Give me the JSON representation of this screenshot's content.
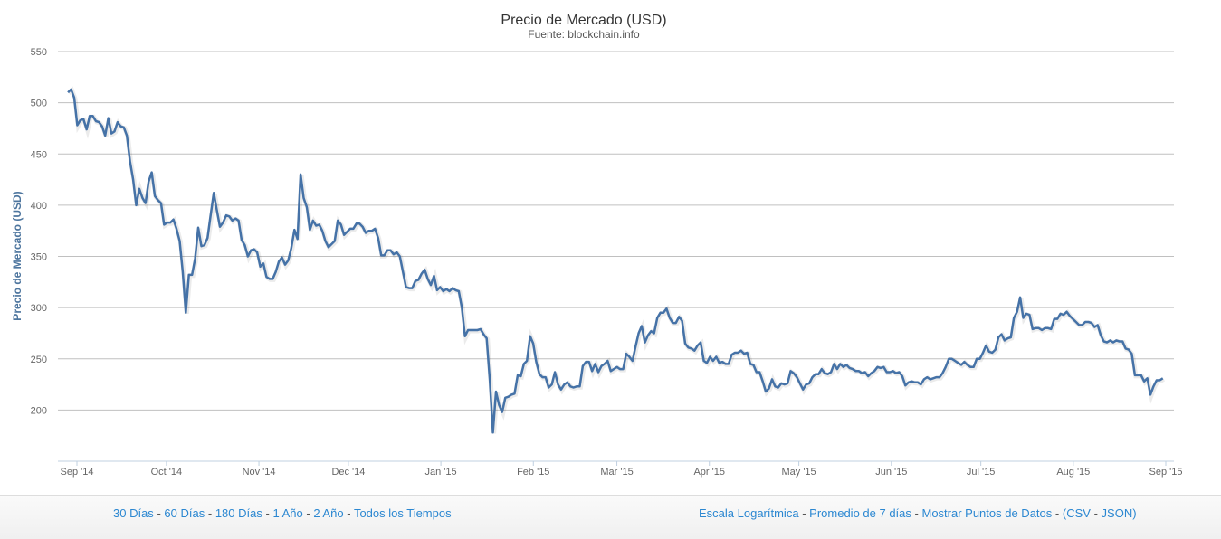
{
  "chart_data": {
    "type": "line",
    "title": "Precio de Mercado (USD)",
    "subtitle": "Fuente: blockchain.info",
    "ylabel": "Precio de Mercado (USD)",
    "xlabel": "",
    "ylim": [
      150,
      550
    ],
    "yticks": [
      200,
      250,
      300,
      350,
      400,
      450,
      500,
      550
    ],
    "xticks": [
      "Sep '14",
      "Oct '14",
      "Nov '14",
      "Dec '14",
      "Jan '15",
      "Feb '15",
      "Mar '15",
      "Apr '15",
      "May '15",
      "Jun '15",
      "Jul '15",
      "Aug '15",
      "Sep '15"
    ],
    "xtick_dates": [
      "2014-09-01",
      "2014-10-01",
      "2014-11-01",
      "2014-12-01",
      "2015-01-01",
      "2015-02-01",
      "2015-03-01",
      "2015-04-01",
      "2015-05-01",
      "2015-06-01",
      "2015-07-01",
      "2015-08-01",
      "2015-09-01"
    ],
    "grid": true,
    "legend": "none",
    "series": [
      {
        "name": "Precio de Mercado (USD)",
        "color": "#4572a7",
        "start_date": "2014-08-29",
        "end_date": "2015-08-31",
        "values": [
          510,
          513,
          505,
          478,
          483,
          484,
          474,
          487,
          487,
          482,
          481,
          477,
          468,
          485,
          470,
          472,
          481,
          477,
          476,
          468,
          443,
          425,
          400,
          416,
          407,
          402,
          423,
          432,
          409,
          405,
          402,
          381,
          383,
          383,
          386,
          377,
          365,
          335,
          295,
          332,
          332,
          348,
          378,
          360,
          361,
          368,
          390,
          412,
          395,
          379,
          383,
          390,
          389,
          385,
          387,
          385,
          366,
          361,
          350,
          356,
          357,
          354,
          340,
          343,
          330,
          328,
          328,
          335,
          345,
          349,
          342,
          346,
          358,
          376,
          367,
          430,
          407,
          398,
          376,
          385,
          380,
          381,
          375,
          365,
          359,
          362,
          365,
          385,
          381,
          371,
          374,
          377,
          377,
          382,
          382,
          379,
          373,
          375,
          375,
          377,
          368,
          351,
          351,
          356,
          356,
          352,
          354,
          350,
          335,
          320,
          319,
          319,
          326,
          327,
          333,
          337,
          328,
          322,
          331,
          317,
          320,
          316,
          318,
          316,
          319,
          317,
          316,
          300,
          272,
          278,
          278,
          278,
          278,
          279,
          274,
          270,
          230,
          178,
          218,
          205,
          198,
          212,
          213,
          215,
          216,
          234,
          233,
          245,
          248,
          272,
          265,
          247,
          235,
          232,
          232,
          222,
          225,
          237,
          225,
          220,
          225,
          227,
          223,
          222,
          223,
          223,
          243,
          247,
          247,
          238,
          245,
          237,
          243,
          245,
          248,
          238,
          240,
          242,
          240,
          240,
          255,
          252,
          248,
          262,
          275,
          282,
          266,
          273,
          277,
          275,
          290,
          295,
          295,
          299,
          290,
          285,
          285,
          291,
          287,
          265,
          261,
          260,
          258,
          263,
          266,
          248,
          246,
          252,
          248,
          252,
          246,
          247,
          245,
          245,
          254,
          256,
          256,
          258,
          255,
          256,
          245,
          244,
          237,
          237,
          228,
          218,
          221,
          230,
          223,
          222,
          226,
          225,
          226,
          238,
          236,
          232,
          226,
          220,
          225,
          226,
          232,
          235,
          235,
          240,
          236,
          235,
          237,
          245,
          240,
          245,
          242,
          244,
          241,
          240,
          238,
          238,
          236,
          237,
          233,
          236,
          238,
          242,
          241,
          242,
          237,
          237,
          238,
          236,
          237,
          233,
          224,
          227,
          228,
          227,
          227,
          225,
          230,
          232,
          230,
          231,
          232,
          232,
          236,
          242,
          250,
          250,
          248,
          246,
          244,
          247,
          244,
          242,
          242,
          250,
          250,
          256,
          263,
          257,
          256,
          259,
          271,
          274,
          268,
          270,
          271,
          290,
          296,
          310,
          290,
          294,
          293,
          279,
          280,
          280,
          278,
          280,
          280,
          279,
          289,
          289,
          294,
          293,
          296,
          292,
          289,
          286,
          283,
          283,
          286,
          286,
          285,
          281,
          283,
          273,
          267,
          266,
          268,
          266,
          268,
          267,
          267,
          260,
          259,
          255,
          234,
          234,
          234,
          228,
          231,
          215,
          223,
          229,
          229,
          231
        ]
      }
    ]
  },
  "footer": {
    "range_links": [
      "30 Días",
      "60 Días",
      "180 Días",
      "1 Año",
      "2 Año",
      "Todos los Tiempos"
    ],
    "option_links": [
      "Escala Logarítmica",
      "Promedio de 7 días",
      "Mostrar Puntos de Datos"
    ],
    "export_links": [
      "CSV",
      "JSON"
    ],
    "separator": "-",
    "open_paren": "(",
    "close_paren": ")"
  }
}
